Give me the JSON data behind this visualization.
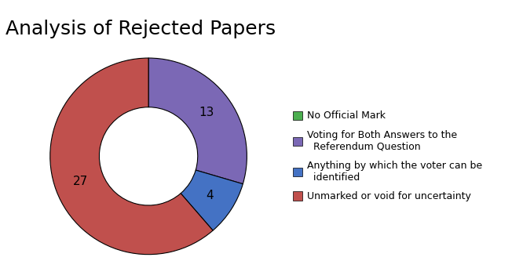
{
  "title": "Analysis of Rejected Papers",
  "values": [
    0.001,
    13,
    4,
    27
  ],
  "display_values": [
    "",
    "13",
    "4",
    "27"
  ],
  "colors": [
    "#4CAF50",
    "#7B68B5",
    "#4472C4",
    "#C0504D"
  ],
  "legend_labels": [
    "No Official Mark",
    "Voting for Both Answers to the\n  Referendum Question",
    "Anything by which the voter can be\n  identified",
    "Unmarked or void for uncertainty"
  ],
  "title_fontsize": 18,
  "legend_fontsize": 9,
  "value_fontsize": 11,
  "background_color": "#ffffff"
}
